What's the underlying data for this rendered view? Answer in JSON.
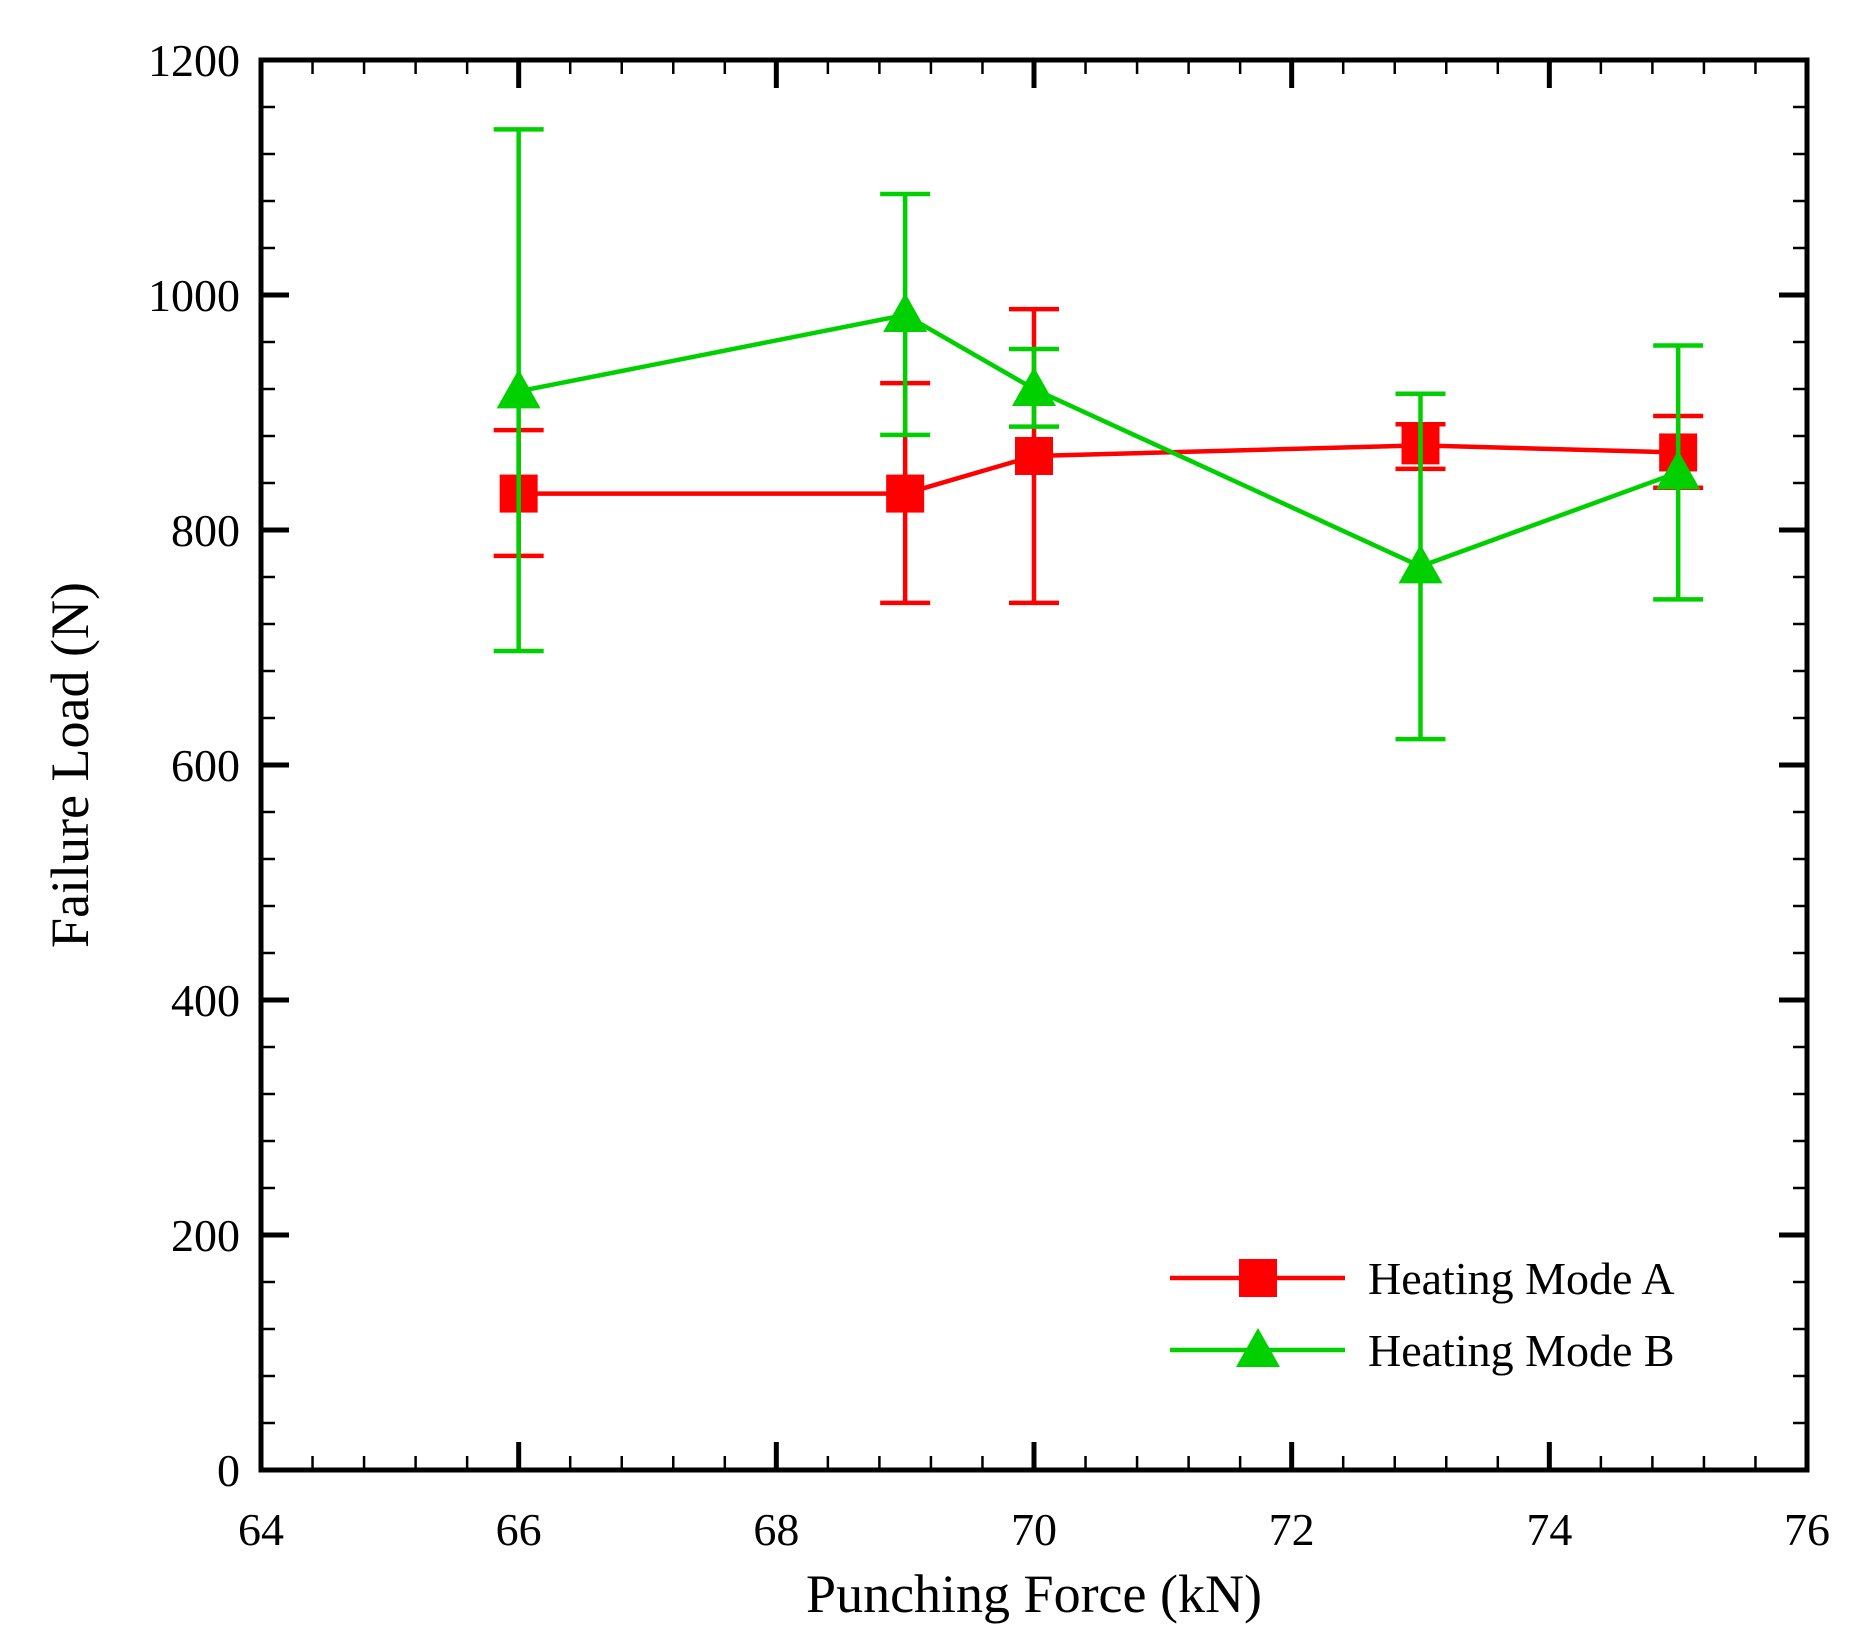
{
  "chart_data": {
    "type": "line",
    "xlabel": "Punching Force (kN)",
    "ylabel": "Failure Load (N)",
    "xlim": [
      64,
      76
    ],
    "ylim": [
      0,
      1200
    ],
    "xticks": [
      64,
      66,
      68,
      70,
      72,
      74,
      76
    ],
    "yticks": [
      0,
      200,
      400,
      600,
      800,
      1000,
      1200
    ],
    "x_minor_step": 0.4,
    "y_minor_step": 40,
    "legend_position": "bottom-right",
    "series": [
      {
        "name": "Heating Mode A",
        "color": "#ff0000",
        "marker": "square",
        "points": [
          {
            "x": 66,
            "y": 831,
            "low": 778,
            "high": 885
          },
          {
            "x": 69,
            "y": 831,
            "low": 738,
            "high": 925
          },
          {
            "x": 70,
            "y": 863,
            "low": 738,
            "high": 988
          },
          {
            "x": 73,
            "y": 872,
            "low": 852,
            "high": 890
          },
          {
            "x": 75,
            "y": 866,
            "low": 836,
            "high": 897
          }
        ]
      },
      {
        "name": "Heating Mode B",
        "color": "#00d000",
        "marker": "triangle",
        "points": [
          {
            "x": 66,
            "y": 918,
            "low": 697,
            "high": 1141
          },
          {
            "x": 69,
            "y": 983,
            "low": 881,
            "high": 1086
          },
          {
            "x": 70,
            "y": 920,
            "low": 888,
            "high": 954
          },
          {
            "x": 73,
            "y": 769,
            "low": 622,
            "high": 916
          },
          {
            "x": 75,
            "y": 849,
            "low": 741,
            "high": 957
          }
        ]
      }
    ]
  }
}
